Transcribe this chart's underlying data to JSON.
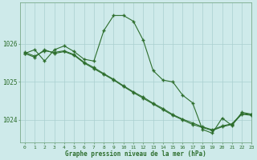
{
  "title": "Graphe pression niveau de la mer (hPa)",
  "background_color": "#ceeaea",
  "grid_color": "#aacfcf",
  "line_color": "#2d6e2d",
  "xlim": [
    -0.5,
    23
  ],
  "ylim": [
    1023.4,
    1027.1
  ],
  "yticks": [
    1024,
    1025,
    1026
  ],
  "xticks": [
    0,
    1,
    2,
    3,
    4,
    5,
    6,
    7,
    8,
    9,
    10,
    11,
    12,
    13,
    14,
    15,
    16,
    17,
    18,
    19,
    20,
    21,
    22,
    23
  ],
  "line1_x": [
    0,
    1,
    2,
    3,
    4,
    5,
    6,
    7,
    8,
    9,
    10,
    11,
    12,
    13,
    14,
    15,
    16,
    17,
    18,
    19,
    20,
    21,
    22,
    23
  ],
  "line1_y": [
    1025.75,
    1025.85,
    1025.55,
    1025.85,
    1025.95,
    1025.8,
    1025.6,
    1025.55,
    1026.35,
    1026.75,
    1026.75,
    1026.6,
    1026.1,
    1025.3,
    1025.05,
    1025.0,
    1024.65,
    1024.45,
    1023.75,
    1023.65,
    1024.05,
    1023.85,
    1024.2,
    1024.15
  ],
  "line2_x": [
    0,
    1,
    2,
    3,
    4,
    5,
    6,
    7,
    8,
    9,
    10,
    11,
    12,
    13,
    14,
    15,
    16,
    17,
    18,
    19,
    20,
    21,
    22,
    23
  ],
  "line2_y": [
    1025.75,
    1025.65,
    1025.85,
    1025.75,
    1025.8,
    1025.7,
    1025.5,
    1025.35,
    1025.2,
    1025.05,
    1024.88,
    1024.72,
    1024.57,
    1024.42,
    1024.27,
    1024.12,
    1024.0,
    1023.88,
    1023.8,
    1023.72,
    1023.82,
    1023.88,
    1024.15,
    1024.12
  ],
  "line3_x": [
    0,
    1,
    2,
    3,
    4,
    5,
    6,
    7,
    8,
    9,
    10,
    11,
    12,
    13,
    14,
    15,
    16,
    17,
    18,
    19,
    20,
    21,
    22,
    23
  ],
  "line3_y": [
    1025.78,
    1025.68,
    1025.82,
    1025.78,
    1025.82,
    1025.72,
    1025.52,
    1025.38,
    1025.22,
    1025.07,
    1024.9,
    1024.74,
    1024.6,
    1024.44,
    1024.3,
    1024.14,
    1024.02,
    1023.92,
    1023.82,
    1023.74,
    1023.84,
    1023.9,
    1024.17,
    1024.14
  ]
}
